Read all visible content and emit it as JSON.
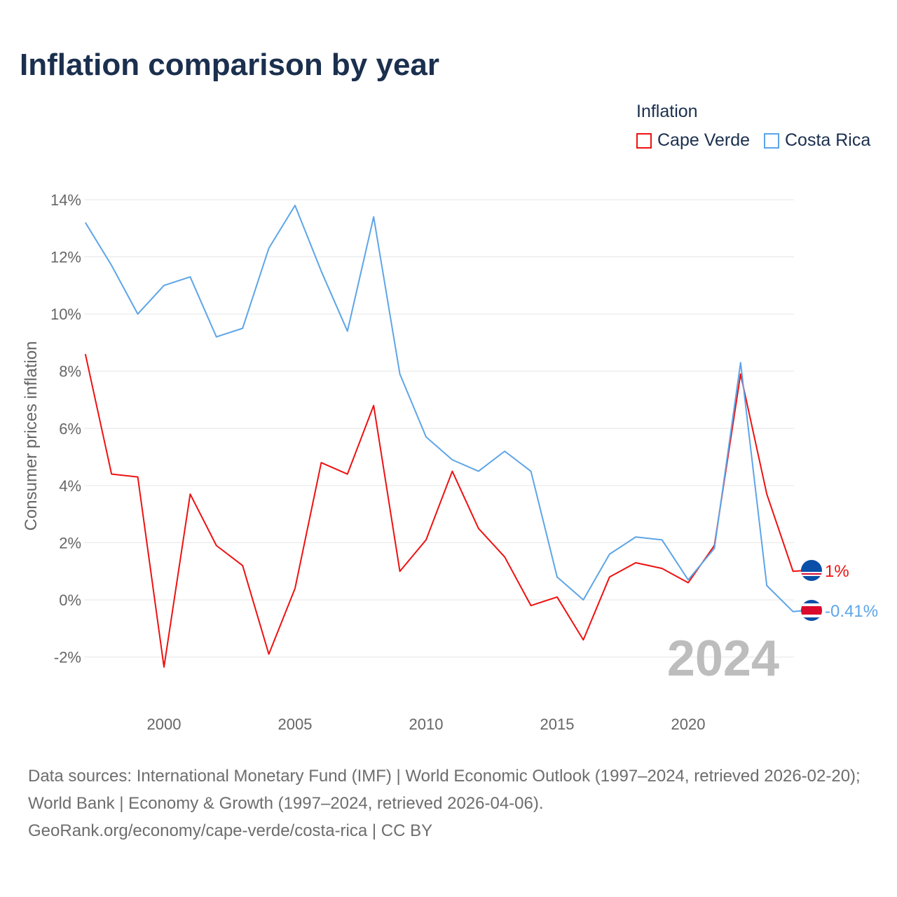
{
  "title": "Inflation comparison by year",
  "legend": {
    "title": "Inflation",
    "items": [
      {
        "label": "Cape Verde",
        "color": "#ee1111"
      },
      {
        "label": "Costa Rica",
        "color": "#5da5e8"
      }
    ]
  },
  "source": {
    "line1": "Data sources: International Monetary Fund (IMF) | World Economic Outlook (1997–2024, retrieved 2026-02-20); World Bank | Economy & Growth (1997–2024, retrieved 2026-04-06).",
    "line2": "GeoRank.org/economy/cape-verde/costa-rica | CC BY"
  },
  "chart_data": {
    "type": "line",
    "title": "Inflation comparison by year",
    "xlabel": "",
    "ylabel": "Consumer prices inflation",
    "year_watermark": "2024",
    "x": [
      1997,
      1998,
      1999,
      2000,
      2001,
      2002,
      2003,
      2004,
      2005,
      2006,
      2007,
      2008,
      2009,
      2010,
      2011,
      2012,
      2013,
      2014,
      2015,
      2016,
      2017,
      2018,
      2019,
      2020,
      2021,
      2022,
      2023,
      2024
    ],
    "xticks": [
      "2000",
      "2005",
      "2010",
      "2015",
      "2020"
    ],
    "yticks": [
      "-2%",
      "0%",
      "2%",
      "4%",
      "6%",
      "8%",
      "10%",
      "12%",
      "14%"
    ],
    "ylim": [
      -3,
      14.5
    ],
    "grid": true,
    "legend_position": "top-right",
    "series": [
      {
        "name": "Cape Verde",
        "color": "#ee1111",
        "end_label": "1%",
        "values": [
          8.6,
          4.4,
          4.3,
          -2.35,
          3.7,
          1.9,
          1.2,
          -1.9,
          0.4,
          4.8,
          4.4,
          6.8,
          1.0,
          2.1,
          4.5,
          2.5,
          1.5,
          -0.2,
          0.1,
          -1.4,
          0.8,
          1.3,
          1.1,
          0.6,
          1.9,
          7.9,
          3.7,
          1.0
        ]
      },
      {
        "name": "Costa Rica",
        "color": "#5da5e8",
        "end_label": "-0.41%",
        "values": [
          13.2,
          11.7,
          10.0,
          11.0,
          11.3,
          9.2,
          9.5,
          12.3,
          13.8,
          11.5,
          9.4,
          13.4,
          7.9,
          5.7,
          4.9,
          4.5,
          5.2,
          4.5,
          0.8,
          0.0,
          1.6,
          2.2,
          2.1,
          0.7,
          1.8,
          8.3,
          0.5,
          -0.41
        ]
      }
    ]
  }
}
